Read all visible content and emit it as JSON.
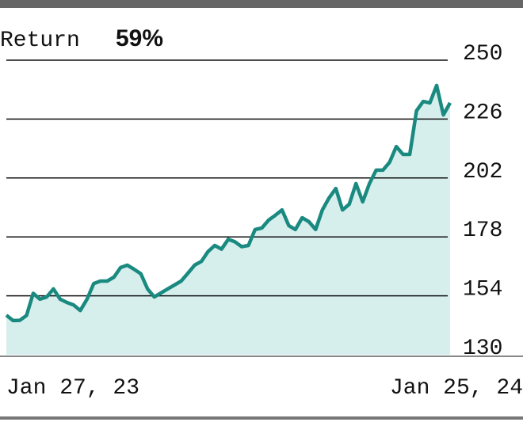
{
  "chart_data": {
    "type": "area",
    "title": "Return",
    "annotations": [
      "59%"
    ],
    "categories": [
      "Jan 27, 23",
      null,
      null,
      null,
      null,
      null,
      null,
      null,
      null,
      null,
      null,
      null,
      null,
      null,
      null,
      null,
      null,
      null,
      null,
      null,
      null,
      null,
      null,
      null,
      null,
      null,
      null,
      null,
      null,
      null,
      null,
      null,
      null,
      null,
      null,
      null,
      null,
      null,
      null,
      null,
      null,
      null,
      null,
      null,
      null,
      null,
      null,
      null,
      null,
      null,
      null,
      null,
      null,
      null,
      null,
      null,
      null,
      null,
      null,
      null,
      null,
      null,
      null,
      null,
      null,
      null,
      "Jan 25, 24"
    ],
    "values": [
      146.1,
      143.9,
      144,
      146,
      155,
      152.6,
      153.5,
      156.8,
      152.6,
      151.3,
      150.3,
      148,
      152.6,
      159,
      160,
      160,
      161.6,
      165.5,
      166.5,
      164.8,
      163,
      156.8,
      153.5,
      155.2,
      156.8,
      158.4,
      160,
      163.2,
      166.5,
      168,
      172,
      174.5,
      173,
      177,
      176,
      174,
      174.5,
      181,
      181.6,
      184.8,
      186.8,
      189,
      182.6,
      181,
      185.8,
      184.2,
      181,
      189,
      193.9,
      197.7,
      189,
      191.3,
      199.7,
      192.3,
      199.7,
      205.2,
      205.2,
      208.4,
      214.8,
      211.6,
      211.6,
      229.4,
      233.2,
      232.6,
      239.7,
      227.7,
      232.6
    ],
    "color": "#1a8a80",
    "fill_color": "#d6efec",
    "ylim": [
      130,
      250
    ],
    "yticks": [
      130,
      154,
      178,
      202,
      226,
      250
    ],
    "grid": true,
    "y_axis_side": "right"
  }
}
